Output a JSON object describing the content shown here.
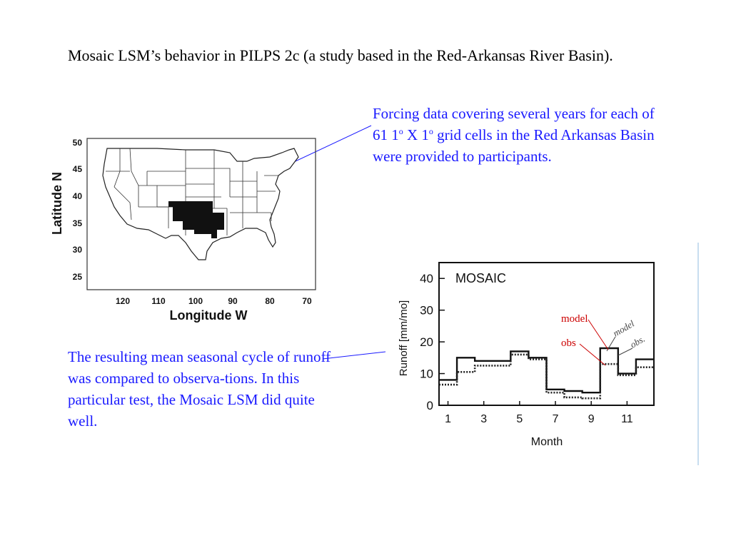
{
  "slide": {
    "title": "Mosaic LSM’s behavior in PILPS 2c (a study based in the Red-Arkansas River Basin).",
    "forcing_note": {
      "p1": "Forcing data covering several years for each of 61 1",
      "sup1": "o",
      "p2": " X 1",
      "sup2": "o",
      "p3": " grid cells in the Red Arkansas Basin were provided to participants."
    },
    "result_note": "The resulting mean seasonal cycle of runoff was compared to observa-tions.  In this particular test, the Mosaic LSM did quite well.",
    "accent_color": "#1a1aff",
    "legend_color": "#cc0000"
  },
  "map": {
    "ylabel": "Latitude N",
    "xlabel": "Longitude W",
    "yticks": [
      "50",
      "45",
      "40",
      "35",
      "30",
      "25"
    ],
    "xticks": [
      "120",
      "110",
      "100",
      "90",
      "80",
      "70"
    ],
    "basin_color": "#111111"
  },
  "chart_data": {
    "type": "line",
    "title": "MOSAIC",
    "xlabel": "Month",
    "ylabel": "Runoff [mm/mo]",
    "x_ticks": [
      "1",
      "3",
      "5",
      "7",
      "9",
      "11"
    ],
    "y_ticks": [
      "0",
      "10",
      "20",
      "30",
      "40"
    ],
    "ylim": [
      0,
      45
    ],
    "xlim": [
      0.5,
      12.5
    ],
    "categories": [
      1,
      2,
      3,
      4,
      5,
      6,
      7,
      8,
      9,
      10,
      11,
      12
    ],
    "series": [
      {
        "name": "model",
        "values": [
          8,
          15,
          14,
          14,
          17,
          15,
          5,
          4.5,
          4,
          18,
          10,
          14.5
        ]
      },
      {
        "name": "obs",
        "values": [
          6.5,
          10.5,
          12.5,
          12.5,
          16,
          14.5,
          4,
          2.5,
          2.2,
          13,
          9.5,
          12
        ]
      }
    ],
    "legend_labels": {
      "model": "model",
      "obs": "obs"
    },
    "handwritten_labels": {
      "model": "model",
      "obs": "obs."
    },
    "grid": false,
    "step": true
  }
}
